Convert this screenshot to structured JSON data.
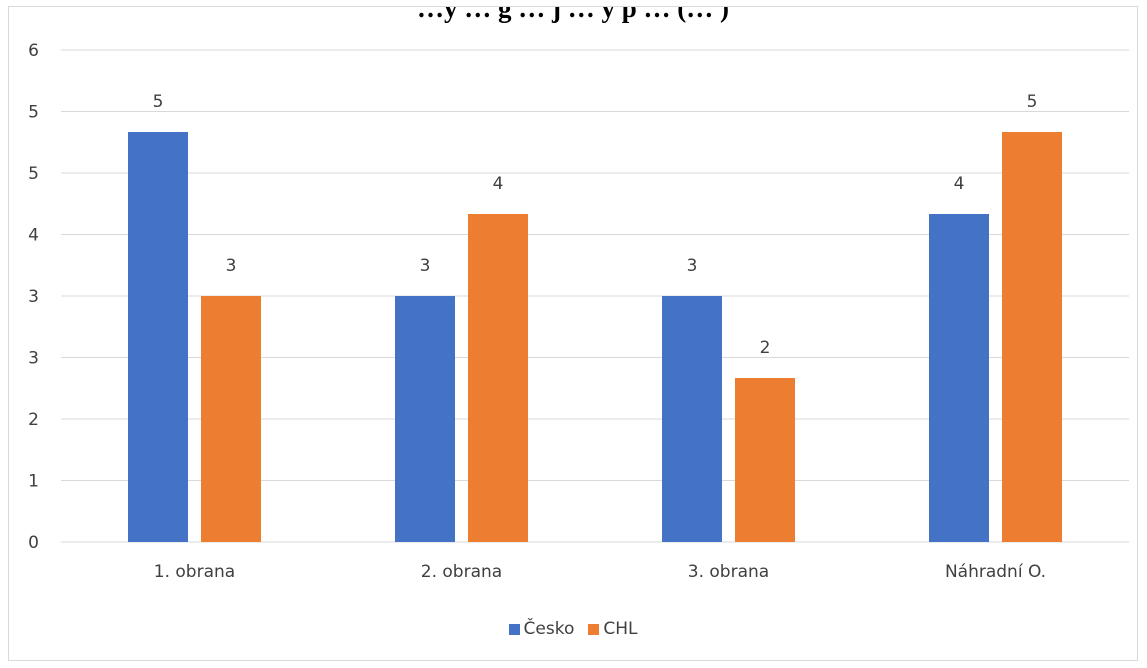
{
  "chart_data": {
    "type": "bar",
    "title": "…y … g … j … y p … (… )",
    "categories": [
      "1. obrana",
      "2. obrana",
      "3. obrana",
      "Náhradní O."
    ],
    "series": [
      {
        "name": "Česko",
        "color": "#4472C4",
        "values": [
          5,
          3,
          3,
          4
        ]
      },
      {
        "name": "CHL",
        "color": "#ED7D31",
        "values": [
          3,
          4,
          2,
          5
        ]
      }
    ],
    "y_ticks": [
      "0",
      "1",
      "2",
      "3",
      "3",
      "4",
      "5",
      "5",
      "6"
    ],
    "ylim": [
      0,
      6
    ],
    "xlabel": "",
    "ylabel": "",
    "grid": true,
    "legend_position": "bottom"
  }
}
